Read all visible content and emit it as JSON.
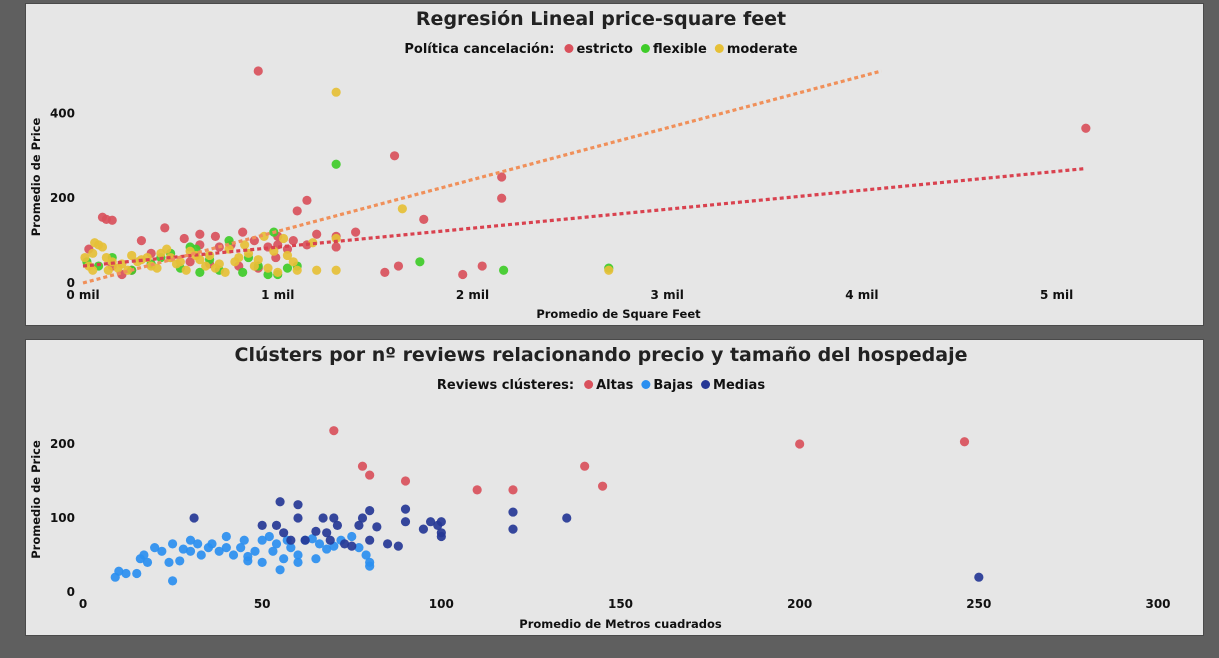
{
  "chart_data": [
    {
      "type": "scatter",
      "title": "Regresión Lineal price-square feet",
      "xlabel": "Promedio de Square Feet",
      "ylabel": "Promedio de Price",
      "xlim": [
        0,
        5500
      ],
      "ylim": [
        0,
        500
      ],
      "x_ticks": [
        0,
        1000,
        2000,
        3000,
        4000,
        5000
      ],
      "x_tick_labels": [
        "0 mil",
        "1 mil",
        "2 mil",
        "3 mil",
        "4 mil",
        "5 mil"
      ],
      "y_ticks": [
        0,
        200,
        400
      ],
      "y_tick_labels": [
        "0",
        "200",
        "400"
      ],
      "legend": {
        "title": "Política cancelación:",
        "position": "top-center"
      },
      "grid": false,
      "series": [
        {
          "name": "estricto",
          "color": "#d9515c",
          "points": [
            [
              900,
              500
            ],
            [
              1600,
              300
            ],
            [
              1150,
              195
            ],
            [
              1100,
              170
            ],
            [
              2150,
              250
            ],
            [
              2150,
              200
            ],
            [
              1750,
              150
            ],
            [
              5150,
              365
            ],
            [
              100,
              155
            ],
            [
              120,
              150
            ],
            [
              150,
              148
            ],
            [
              30,
              80
            ],
            [
              300,
              100
            ],
            [
              420,
              130
            ],
            [
              520,
              105
            ],
            [
              600,
              115
            ],
            [
              680,
              110
            ],
            [
              760,
              90
            ],
            [
              820,
              120
            ],
            [
              880,
              100
            ],
            [
              950,
              85
            ],
            [
              1000,
              90
            ],
            [
              1050,
              80
            ],
            [
              1200,
              115
            ],
            [
              1300,
              85
            ],
            [
              1400,
              120
            ],
            [
              1550,
              25
            ],
            [
              1620,
              40
            ],
            [
              1950,
              20
            ],
            [
              2050,
              40
            ],
            [
              150,
              40
            ],
            [
              250,
              30
            ],
            [
              350,
              70
            ],
            [
              450,
              60
            ],
            [
              550,
              50
            ],
            [
              650,
              45
            ],
            [
              700,
              85
            ],
            [
              800,
              40
            ],
            [
              900,
              35
            ],
            [
              990,
              60
            ],
            [
              1080,
              100
            ],
            [
              1150,
              90
            ],
            [
              1300,
              110
            ],
            [
              200,
              20
            ],
            [
              600,
              90
            ],
            [
              1000,
              110
            ]
          ]
        },
        {
          "name": "flexible",
          "color": "#3fcc29",
          "points": [
            [
              1300,
              280
            ],
            [
              20,
              50
            ],
            [
              80,
              40
            ],
            [
              150,
              60
            ],
            [
              250,
              30
            ],
            [
              350,
              45
            ],
            [
              450,
              70
            ],
            [
              550,
              85
            ],
            [
              580,
              80
            ],
            [
              650,
              55
            ],
            [
              700,
              30
            ],
            [
              750,
              100
            ],
            [
              820,
              25
            ],
            [
              900,
              40
            ],
            [
              980,
              120
            ],
            [
              1000,
              20
            ],
            [
              1050,
              35
            ],
            [
              1100,
              40
            ],
            [
              1730,
              50
            ],
            [
              2160,
              30
            ],
            [
              2700,
              35
            ],
            [
              400,
              60
            ],
            [
              500,
              35
            ],
            [
              600,
              25
            ],
            [
              850,
              60
            ],
            [
              950,
              20
            ]
          ]
        },
        {
          "name": "moderate",
          "color": "#e6c037",
          "points": [
            [
              1300,
              450
            ],
            [
              1640,
              175
            ],
            [
              2700,
              30
            ],
            [
              10,
              60
            ],
            [
              30,
              40
            ],
            [
              50,
              70
            ],
            [
              80,
              90
            ],
            [
              100,
              85
            ],
            [
              120,
              60
            ],
            [
              150,
              50
            ],
            [
              200,
              45
            ],
            [
              250,
              65
            ],
            [
              300,
              55
            ],
            [
              350,
              40
            ],
            [
              400,
              70
            ],
            [
              450,
              60
            ],
            [
              500,
              50
            ],
            [
              550,
              75
            ],
            [
              600,
              55
            ],
            [
              650,
              65
            ],
            [
              700,
              45
            ],
            [
              750,
              80
            ],
            [
              800,
              60
            ],
            [
              850,
              70
            ],
            [
              900,
              55
            ],
            [
              950,
              35
            ],
            [
              1000,
              25
            ],
            [
              1050,
              65
            ],
            [
              1100,
              30
            ],
            [
              1200,
              30
            ],
            [
              1300,
              30
            ],
            [
              1300,
              105
            ],
            [
              50,
              30
            ],
            [
              180,
              35
            ],
            [
              280,
              50
            ],
            [
              380,
              35
            ],
            [
              480,
              45
            ],
            [
              580,
              65
            ],
            [
              680,
              35
            ],
            [
              780,
              50
            ],
            [
              880,
              40
            ],
            [
              980,
              75
            ],
            [
              1080,
              50
            ],
            [
              1180,
              95
            ],
            [
              60,
              95
            ],
            [
              130,
              30
            ],
            [
              230,
              30
            ],
            [
              330,
              60
            ],
            [
              430,
              80
            ],
            [
              530,
              30
            ],
            [
              630,
              40
            ],
            [
              730,
              25
            ],
            [
              830,
              90
            ],
            [
              930,
              110
            ],
            [
              1030,
              105
            ]
          ]
        }
      ],
      "trendlines": [
        {
          "series": "estricto",
          "color": "#d9424f",
          "from": [
            0,
            40
          ],
          "to": [
            5150,
            270
          ]
        },
        {
          "series": "moderate",
          "color": "#f0905a",
          "from": [
            0,
            0
          ],
          "to": [
            4100,
            500
          ]
        }
      ]
    },
    {
      "type": "scatter",
      "title": "Clústers por nº reviews relacionando precio y tamaño del hospedaje",
      "xlabel": "Promedio de Metros cuadrados",
      "ylabel": "Promedio de Price",
      "xlim": [
        0,
        300
      ],
      "ylim": [
        0,
        250
      ],
      "x_ticks": [
        0,
        50,
        100,
        150,
        200,
        250,
        300
      ],
      "x_tick_labels": [
        "0",
        "50",
        "100",
        "150",
        "200",
        "250",
        "300"
      ],
      "y_ticks": [
        0,
        100,
        200
      ],
      "y_tick_labels": [
        "0",
        "100",
        "200"
      ],
      "legend": {
        "title": "Reviews clústeres:",
        "position": "top-center"
      },
      "grid": false,
      "series": [
        {
          "name": "Altas",
          "color": "#d9515c",
          "points": [
            [
              70,
              218
            ],
            [
              78,
              170
            ],
            [
              80,
              158
            ],
            [
              90,
              150
            ],
            [
              110,
              138
            ],
            [
              120,
              138
            ],
            [
              140,
              170
            ],
            [
              145,
              143
            ],
            [
              200,
              200
            ],
            [
              246,
              203
            ]
          ]
        },
        {
          "name": "Bajas",
          "color": "#2b8ff0",
          "points": [
            [
              9,
              20
            ],
            [
              10,
              28
            ],
            [
              12,
              25
            ],
            [
              15,
              25
            ],
            [
              16,
              45
            ],
            [
              17,
              50
            ],
            [
              18,
              40
            ],
            [
              20,
              60
            ],
            [
              22,
              55
            ],
            [
              24,
              40
            ],
            [
              25,
              15
            ],
            [
              25,
              65
            ],
            [
              27,
              42
            ],
            [
              28,
              58
            ],
            [
              30,
              55
            ],
            [
              30,
              70
            ],
            [
              32,
              65
            ],
            [
              33,
              50
            ],
            [
              35,
              60
            ],
            [
              36,
              65
            ],
            [
              38,
              55
            ],
            [
              40,
              75
            ],
            [
              40,
              60
            ],
            [
              42,
              50
            ],
            [
              44,
              60
            ],
            [
              45,
              70
            ],
            [
              46,
              48
            ],
            [
              46,
              42
            ],
            [
              48,
              55
            ],
            [
              50,
              70
            ],
            [
              50,
              40
            ],
            [
              52,
              75
            ],
            [
              53,
              55
            ],
            [
              54,
              65
            ],
            [
              55,
              30
            ],
            [
              56,
              45
            ],
            [
              57,
              70
            ],
            [
              58,
              60
            ],
            [
              60,
              50
            ],
            [
              62,
              70
            ],
            [
              64,
              72
            ],
            [
              66,
              65
            ],
            [
              68,
              58
            ],
            [
              70,
              62
            ],
            [
              72,
              70
            ],
            [
              75,
              75
            ],
            [
              77,
              60
            ],
            [
              79,
              50
            ],
            [
              80,
              40
            ],
            [
              80,
              35
            ],
            [
              60,
              40
            ],
            [
              65,
              45
            ]
          ]
        },
        {
          "name": "Medias",
          "color": "#263896",
          "points": [
            [
              31,
              100
            ],
            [
              50,
              90
            ],
            [
              54,
              90
            ],
            [
              55,
              122
            ],
            [
              56,
              80
            ],
            [
              58,
              70
            ],
            [
              60,
              118
            ],
            [
              60,
              100
            ],
            [
              62,
              70
            ],
            [
              65,
              82
            ],
            [
              67,
              100
            ],
            [
              68,
              80
            ],
            [
              69,
              70
            ],
            [
              70,
              100
            ],
            [
              71,
              90
            ],
            [
              73,
              65
            ],
            [
              75,
              62
            ],
            [
              77,
              90
            ],
            [
              78,
              100
            ],
            [
              80,
              110
            ],
            [
              80,
              70
            ],
            [
              82,
              88
            ],
            [
              85,
              65
            ],
            [
              88,
              62
            ],
            [
              90,
              95
            ],
            [
              90,
              112
            ],
            [
              95,
              85
            ],
            [
              97,
              95
            ],
            [
              99,
              90
            ],
            [
              100,
              80
            ],
            [
              100,
              95
            ],
            [
              100,
              75
            ],
            [
              120,
              108
            ],
            [
              120,
              85
            ],
            [
              135,
              100
            ],
            [
              250,
              20
            ]
          ]
        }
      ]
    }
  ]
}
